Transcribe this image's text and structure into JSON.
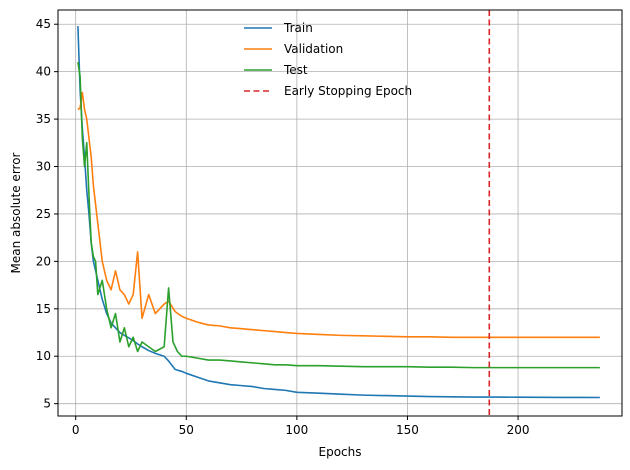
{
  "chart_data": {
    "type": "line",
    "title": "",
    "xlabel": "Epochs",
    "ylabel": "Mean absolute error",
    "xlim": [
      -8,
      247
    ],
    "ylim": [
      3.7,
      46.5
    ],
    "xticks": [
      0,
      50,
      100,
      150,
      200
    ],
    "yticks": [
      5,
      10,
      15,
      20,
      25,
      30,
      35,
      40,
      45
    ],
    "grid": true,
    "legend_position": "top-center",
    "early_stopping_epoch": 187,
    "early_stopping_label": "Early Stopping Epoch",
    "early_stopping_color": "#d62728",
    "series": [
      {
        "name": "Train",
        "color": "#1f77b4",
        "points": [
          [
            1,
            44.8
          ],
          [
            2,
            38
          ],
          [
            3,
            34
          ],
          [
            4,
            31
          ],
          [
            5,
            27.5
          ],
          [
            6,
            25
          ],
          [
            7,
            22
          ],
          [
            8,
            20
          ],
          [
            10,
            18
          ],
          [
            12,
            16
          ],
          [
            14,
            14.5
          ],
          [
            16,
            13.5
          ],
          [
            18,
            13
          ],
          [
            20,
            12.5
          ],
          [
            22,
            12.2
          ],
          [
            25,
            11.8
          ],
          [
            28,
            11.3
          ],
          [
            30,
            11
          ],
          [
            33,
            10.6
          ],
          [
            36,
            10.3
          ],
          [
            40,
            10
          ],
          [
            42,
            9.5
          ],
          [
            45,
            8.6
          ],
          [
            48,
            8.4
          ],
          [
            50,
            8.2
          ],
          [
            55,
            7.8
          ],
          [
            60,
            7.4
          ],
          [
            65,
            7.2
          ],
          [
            70,
            7
          ],
          [
            75,
            6.9
          ],
          [
            80,
            6.8
          ],
          [
            85,
            6.6
          ],
          [
            90,
            6.5
          ],
          [
            95,
            6.4
          ],
          [
            100,
            6.2
          ],
          [
            110,
            6.1
          ],
          [
            120,
            6
          ],
          [
            130,
            5.9
          ],
          [
            140,
            5.85
          ],
          [
            150,
            5.8
          ],
          [
            160,
            5.75
          ],
          [
            170,
            5.72
          ],
          [
            180,
            5.7
          ],
          [
            190,
            5.7
          ],
          [
            200,
            5.68
          ],
          [
            210,
            5.67
          ],
          [
            220,
            5.66
          ],
          [
            230,
            5.66
          ],
          [
            237,
            5.65
          ]
        ]
      },
      {
        "name": "Validation",
        "color": "#ff7f0e",
        "points": [
          [
            1,
            36
          ],
          [
            2,
            36.2
          ],
          [
            3,
            37.8
          ],
          [
            4,
            36
          ],
          [
            5,
            35
          ],
          [
            6,
            33
          ],
          [
            7,
            31
          ],
          [
            8,
            28
          ],
          [
            10,
            24
          ],
          [
            12,
            20
          ],
          [
            14,
            18
          ],
          [
            16,
            17
          ],
          [
            18,
            19
          ],
          [
            20,
            17
          ],
          [
            22,
            16.5
          ],
          [
            24,
            15.5
          ],
          [
            26,
            16.5
          ],
          [
            28,
            21
          ],
          [
            30,
            14
          ],
          [
            33,
            16.5
          ],
          [
            36,
            14.5
          ],
          [
            40,
            15.5
          ],
          [
            42,
            15.8
          ],
          [
            45,
            14.7
          ],
          [
            48,
            14.2
          ],
          [
            50,
            14
          ],
          [
            55,
            13.6
          ],
          [
            60,
            13.3
          ],
          [
            65,
            13.2
          ],
          [
            70,
            13
          ],
          [
            75,
            12.9
          ],
          [
            80,
            12.8
          ],
          [
            85,
            12.7
          ],
          [
            90,
            12.6
          ],
          [
            95,
            12.5
          ],
          [
            100,
            12.4
          ],
          [
            110,
            12.3
          ],
          [
            120,
            12.2
          ],
          [
            130,
            12.15
          ],
          [
            140,
            12.1
          ],
          [
            150,
            12.05
          ],
          [
            160,
            12.05
          ],
          [
            170,
            12
          ],
          [
            180,
            12
          ],
          [
            190,
            12
          ],
          [
            200,
            12
          ],
          [
            210,
            12
          ],
          [
            220,
            12
          ],
          [
            230,
            12
          ],
          [
            237,
            12
          ]
        ]
      },
      {
        "name": "Test",
        "color": "#2ca02c",
        "points": [
          [
            1,
            41
          ],
          [
            2,
            39.5
          ],
          [
            3,
            33
          ],
          [
            4,
            30
          ],
          [
            5,
            32.5
          ],
          [
            6,
            27
          ],
          [
            7,
            22
          ],
          [
            8,
            20.5
          ],
          [
            9,
            20
          ],
          [
            10,
            16.5
          ],
          [
            12,
            18
          ],
          [
            14,
            15
          ],
          [
            16,
            13
          ],
          [
            18,
            14.5
          ],
          [
            20,
            11.5
          ],
          [
            22,
            13
          ],
          [
            24,
            11
          ],
          [
            26,
            12
          ],
          [
            28,
            10.5
          ],
          [
            30,
            11.5
          ],
          [
            33,
            11
          ],
          [
            36,
            10.5
          ],
          [
            40,
            11
          ],
          [
            42,
            17.2
          ],
          [
            44,
            11.5
          ],
          [
            46,
            10.5
          ],
          [
            48,
            10
          ],
          [
            50,
            10
          ],
          [
            55,
            9.8
          ],
          [
            60,
            9.6
          ],
          [
            65,
            9.6
          ],
          [
            70,
            9.5
          ],
          [
            75,
            9.4
          ],
          [
            80,
            9.3
          ],
          [
            85,
            9.2
          ],
          [
            90,
            9.1
          ],
          [
            95,
            9.1
          ],
          [
            100,
            9
          ],
          [
            110,
            9
          ],
          [
            120,
            8.95
          ],
          [
            130,
            8.9
          ],
          [
            140,
            8.9
          ],
          [
            150,
            8.9
          ],
          [
            160,
            8.85
          ],
          [
            170,
            8.85
          ],
          [
            180,
            8.8
          ],
          [
            190,
            8.8
          ],
          [
            200,
            8.8
          ],
          [
            210,
            8.8
          ],
          [
            220,
            8.8
          ],
          [
            230,
            8.8
          ],
          [
            237,
            8.8
          ]
        ]
      }
    ]
  }
}
